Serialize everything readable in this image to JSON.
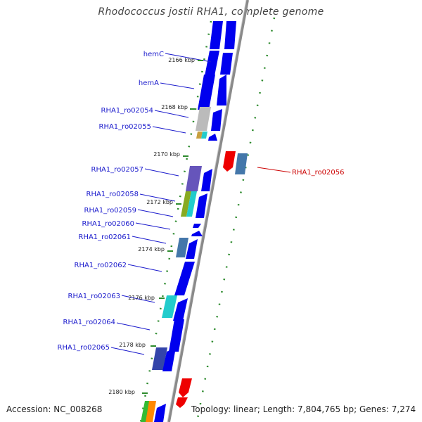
{
  "header": {
    "title": "Rhodococcus jostii RHA1, complete genome"
  },
  "footer": {
    "accession": "Accession: NC_008268",
    "summary": "Topology: linear; Length: 7,804,765 bp; Genes: 7,274"
  },
  "colors": {
    "backbone": "#8c8c8c",
    "forward_gene": "#0000ee",
    "highlight_gene": "#ee0000",
    "label": "#1a1acc",
    "highlight_label": "#cc0000",
    "tick": "#2e8b2e"
  },
  "ticks": [
    {
      "label": "2166 kbp"
    },
    {
      "label": "2168 kbp"
    },
    {
      "label": "2170 kbp"
    },
    {
      "label": "2172 kbp"
    },
    {
      "label": "2174 kbp"
    },
    {
      "label": "2176 kbp"
    },
    {
      "label": "2178 kbp"
    },
    {
      "label": "2180 kbp"
    }
  ],
  "gene_labels": [
    {
      "label": "hemC"
    },
    {
      "label": "hemA"
    },
    {
      "label": "RHA1_ro02054"
    },
    {
      "label": "RHA1_ro02055"
    },
    {
      "label": "RHA1_ro02057"
    },
    {
      "label": "RHA1_ro02058"
    },
    {
      "label": "RHA1_ro02059"
    },
    {
      "label": "RHA1_ro02060"
    },
    {
      "label": "RHA1_ro02061"
    },
    {
      "label": "RHA1_ro02062"
    },
    {
      "label": "RHA1_ro02063"
    },
    {
      "label": "RHA1_ro02064"
    },
    {
      "label": "RHA1_ro02065"
    }
  ],
  "highlight_label": {
    "label": "RHA1_ro02056"
  }
}
